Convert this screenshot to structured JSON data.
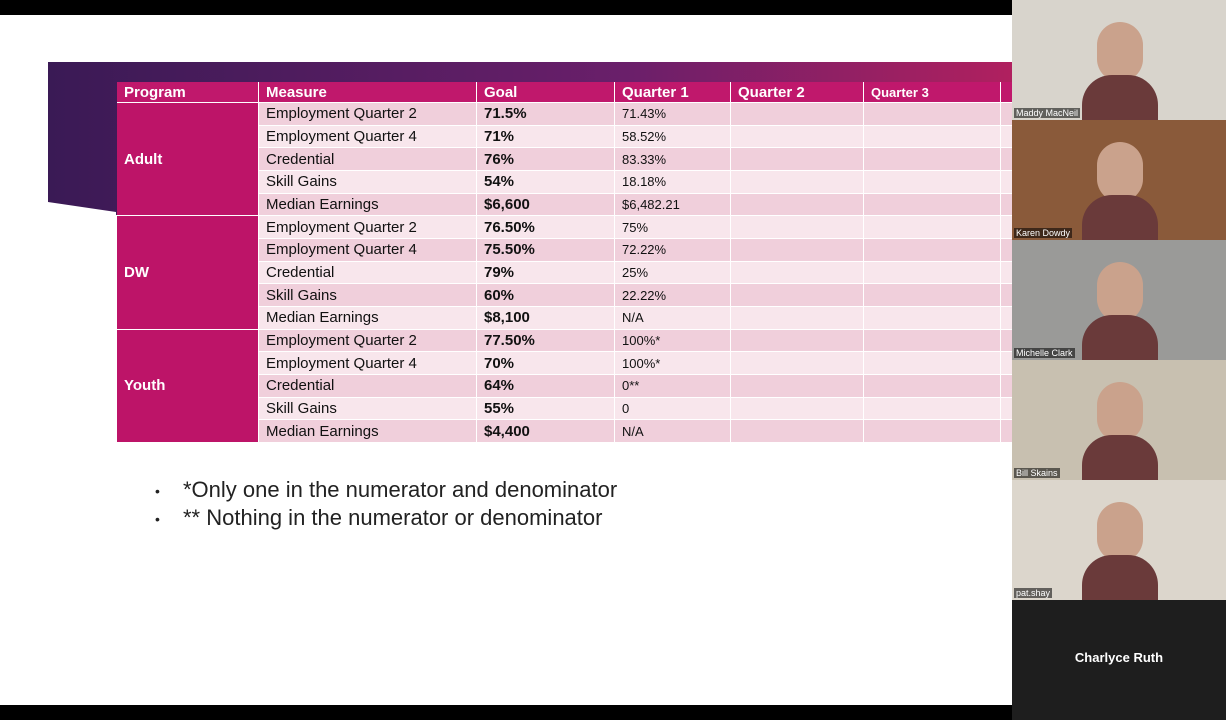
{
  "slide": {
    "table": {
      "headers": [
        "Program",
        "Measure",
        "Goal",
        "Quarter 1",
        "Quarter 2",
        "Quarter 3"
      ],
      "groups": [
        {
          "program": "Adult",
          "rows": [
            {
              "measure": "Employment Quarter 2",
              "goal": "71.5%",
              "q1": "71.43%"
            },
            {
              "measure": "Employment Quarter 4",
              "goal": "71%",
              "q1": "58.52%"
            },
            {
              "measure": "Credential",
              "goal": "76%",
              "q1": "83.33%"
            },
            {
              "measure": "Skill Gains",
              "goal": "54%",
              "q1": "18.18%"
            },
            {
              "measure": "Median Earnings",
              "goal": "$6,600",
              "q1": "$6,482.21"
            }
          ]
        },
        {
          "program": "DW",
          "rows": [
            {
              "measure": "Employment Quarter 2",
              "goal": "76.50%",
              "q1": "75%"
            },
            {
              "measure": "Employment Quarter 4",
              "goal": "75.50%",
              "q1": "72.22%"
            },
            {
              "measure": "Credential",
              "goal": "79%",
              "q1": "25%"
            },
            {
              "measure": "Skill Gains",
              "goal": "60%",
              "q1": "22.22%"
            },
            {
              "measure": "Median Earnings",
              "goal": "$8,100",
              "q1": "N/A"
            }
          ]
        },
        {
          "program": "Youth",
          "rows": [
            {
              "measure": "Employment Quarter 2",
              "goal": "77.50%",
              "q1": "100%*"
            },
            {
              "measure": "Employment Quarter 4",
              "goal": "70%",
              "q1": "100%*"
            },
            {
              "measure": "Credential",
              "goal": "64%",
              "q1": "0**"
            },
            {
              "measure": "Skill Gains",
              "goal": "55%",
              "q1": "0"
            },
            {
              "measure": "Median Earnings",
              "goal": "$4,400",
              "q1": "N/A"
            }
          ]
        }
      ]
    },
    "notes": [
      "*Only one in the numerator and denominator",
      "** Nothing in the numerator or denominator"
    ]
  },
  "participants": [
    "Maddy MacNeil",
    "Karen Dowdy",
    "Michelle Clark",
    "Bill Skains",
    "pat.shay",
    "Charlyce Ruth"
  ]
}
